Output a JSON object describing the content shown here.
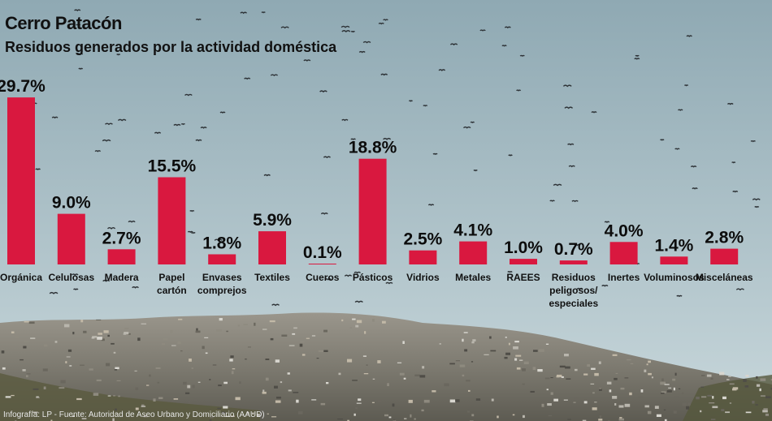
{
  "header": {
    "title": "Cerro Patacón",
    "subtitle": "Residuos generados por la actividad doméstica"
  },
  "footer": {
    "source": "Infografía: LP - Fuente: Autoridad de Aseo Urbano y Domiciliario (AAUD)"
  },
  "colors": {
    "bar": "#d9183f",
    "sky_top": "#8fa9b3",
    "sky_bottom": "#c8d7db",
    "landfill": "#7d7a70"
  },
  "chart_data": {
    "type": "bar",
    "title": "Residuos generados por la actividad doméstica",
    "xlabel": "",
    "ylabel": "",
    "ylim": [
      0,
      30
    ],
    "grid": false,
    "categories": [
      [
        "Orgánica"
      ],
      [
        "Celulosas"
      ],
      [
        "Madera"
      ],
      [
        "Papel",
        "cartón"
      ],
      [
        "Envases",
        "comprejos"
      ],
      [
        "Textiles"
      ],
      [
        "Cueros"
      ],
      [
        "Pásticos"
      ],
      [
        "Vidrios"
      ],
      [
        "Metales"
      ],
      [
        "RAEES"
      ],
      [
        "Residuos",
        "peligosos/",
        "especiales"
      ],
      [
        "Inertes"
      ],
      [
        "Voluminosos"
      ],
      [
        "Misceláneas"
      ]
    ],
    "values": [
      29.7,
      9.0,
      2.7,
      15.5,
      1.8,
      5.9,
      0.1,
      18.8,
      2.5,
      4.1,
      1.0,
      0.7,
      4.0,
      1.4,
      2.8
    ],
    "value_labels": [
      "29.7%",
      "9.0%",
      "2.7%",
      "15.5%",
      "1.8%",
      "5.9%",
      "0.1%",
      "18.8%",
      "2.5%",
      "4.1%",
      "1.0%",
      "0.7%",
      "4.0%",
      "1.4%",
      "2.8%"
    ]
  }
}
